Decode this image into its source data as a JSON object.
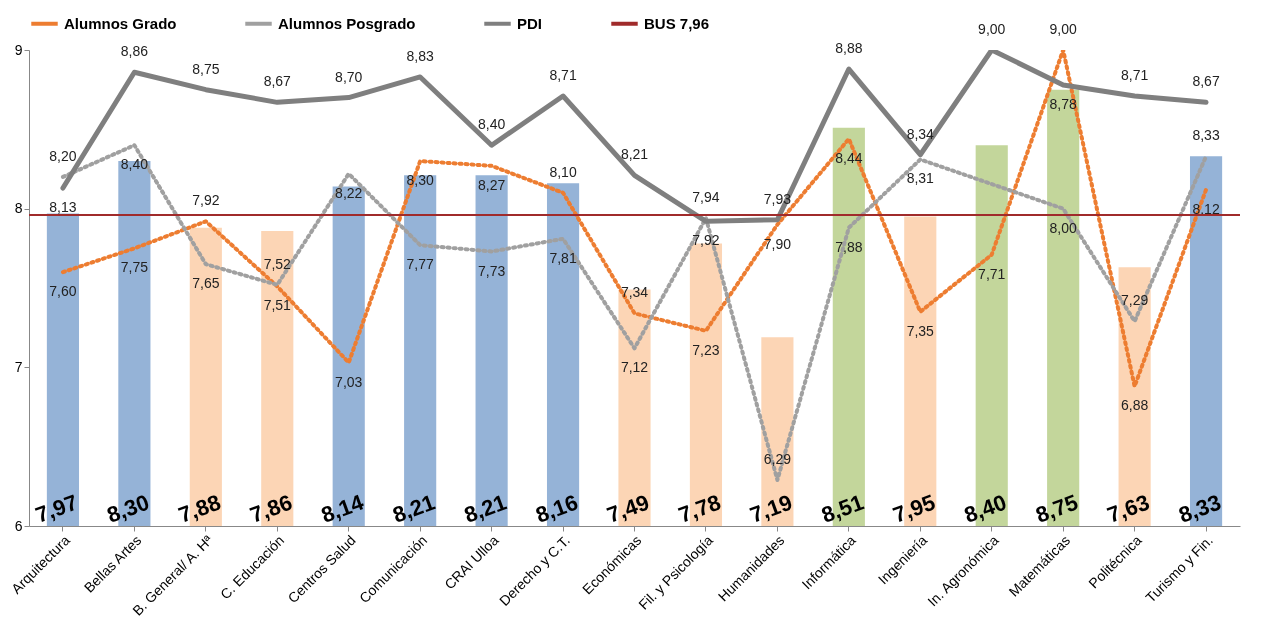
{
  "chart_data": {
    "type": "bar",
    "categories": [
      "Arquitectura",
      "Bellas Artes",
      "B. General/ A. Hª",
      "C. Educación",
      "Centros Salud",
      "Comunicación",
      "CRAI Ulloa",
      "Derecho y C.T.",
      "Económicas",
      "Fil. y Psicología",
      "Humanidades",
      "Informática",
      "Ingeniería",
      "In. Agronómica",
      "Matemáticas",
      "Politécnica",
      "Turismo y Fin."
    ],
    "values": [
      7.97,
      8.3,
      7.88,
      7.86,
      8.14,
      8.21,
      8.21,
      8.16,
      7.49,
      7.78,
      7.19,
      8.51,
      7.95,
      8.4,
      8.75,
      7.63,
      8.33
    ],
    "value_labels": [
      "7,97",
      "8,30",
      "7,88",
      "7,86",
      "8,14",
      "8,21",
      "8,21",
      "8,16",
      "7,49",
      "7,78",
      "7,19",
      "8,51",
      "7,95",
      "8,40",
      "8,75",
      "7,63",
      "8,33"
    ],
    "colors": [
      "#95b3d7",
      "#95b3d7",
      "#fcd5b5",
      "#fcd5b5",
      "#95b3d7",
      "#95b3d7",
      "#95b3d7",
      "#95b3d7",
      "#fcd5b5",
      "#fcd5b5",
      "#fcd5b5",
      "#c3d69b",
      "#fcd5b5",
      "#c3d69b",
      "#c3d69b",
      "#fcd5b5",
      "#95b3d7"
    ],
    "series": [
      {
        "name": "Alumnos Grado",
        "type": "line",
        "color": "#ed7d31",
        "line_style": "dotted",
        "value_labels": [
          "7,60",
          "7,75",
          "7,92",
          "7,51",
          "7,03",
          "8,30",
          "8,27",
          "8,10",
          "7,34",
          "7,23",
          "7,90",
          "8,44",
          "7,35",
          "7,71",
          "9,00",
          "6,88",
          "8,12"
        ],
        "values": [
          7.6,
          7.75,
          7.92,
          7.51,
          7.03,
          8.3,
          8.27,
          8.1,
          7.34,
          7.23,
          7.9,
          8.44,
          7.35,
          7.71,
          9.0,
          6.88,
          8.12
        ]
      },
      {
        "name": "Alumnos Posgrado",
        "type": "line",
        "color": "#a0a0a0",
        "line_style": "dotted",
        "value_labels": [
          "8,20",
          "8,40",
          "7,65",
          "7,52",
          "8,22",
          "7,77",
          "7,73",
          "7,81",
          "7,12",
          "7,94",
          "6,29",
          "7,88",
          "8,31",
          null,
          "8,00",
          "7,29",
          "8,33"
        ],
        "values": [
          8.2,
          8.4,
          7.65,
          7.52,
          8.22,
          7.77,
          7.73,
          7.81,
          7.12,
          7.94,
          6.29,
          7.88,
          8.31,
          null,
          8.0,
          7.29,
          8.33
        ]
      },
      {
        "name": "PDI",
        "type": "line",
        "color": "#7f7f7f",
        "line_style": "solid",
        "value_labels": [
          "8,13",
          "8,86",
          "8,75",
          "8,67",
          "8,70",
          "8,83",
          "8,40",
          "8,71",
          "8,21",
          "7,92",
          "7,93",
          "8,88",
          "8,34",
          "9,00",
          "8,78",
          "8,71",
          "8,67"
        ],
        "values": [
          8.13,
          8.86,
          8.75,
          8.67,
          8.7,
          8.83,
          8.4,
          8.71,
          8.21,
          7.92,
          7.93,
          8.88,
          8.34,
          9.0,
          8.78,
          8.71,
          8.67
        ]
      }
    ],
    "ref_lines": [
      {
        "axis": "y",
        "value": 7.96,
        "label": "BUS 7,96",
        "color": "#a02b2b",
        "line_style": "solid"
      }
    ],
    "ylim": [
      6,
      9
    ],
    "yticks": [
      6,
      7,
      8,
      9
    ],
    "grid": false,
    "legend": "top",
    "marker": "none"
  }
}
